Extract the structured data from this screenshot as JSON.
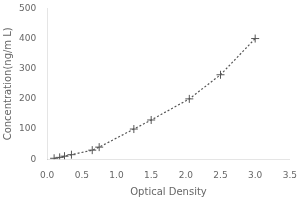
{
  "chart_data": {
    "type": "line",
    "x": [
      0.1,
      0.18,
      0.25,
      0.35,
      0.65,
      0.75,
      1.25,
      1.5,
      2.05,
      2.5,
      3.0
    ],
    "values": [
      3,
      6,
      10,
      15,
      30,
      40,
      100,
      130,
      200,
      280,
      400
    ],
    "xlabel": "Optical Density",
    "ylabel": "Concentration(ng/m L)",
    "xlim": [
      0,
      3.5
    ],
    "ylim": [
      0,
      500
    ],
    "xticks": [
      {
        "value": 0,
        "label": "0.0"
      },
      0.5,
      {
        "value": 1.0,
        "label": "1.0"
      },
      1.5,
      {
        "value": 2.0,
        "label": "2.0"
      },
      2.5,
      {
        "value": 3.0,
        "label": "3.0"
      },
      3.5
    ],
    "yticks": [
      0,
      100,
      200,
      300,
      400,
      500
    ],
    "color": "#555555",
    "marker": "+",
    "line_style": "dotted",
    "grid": false
  }
}
